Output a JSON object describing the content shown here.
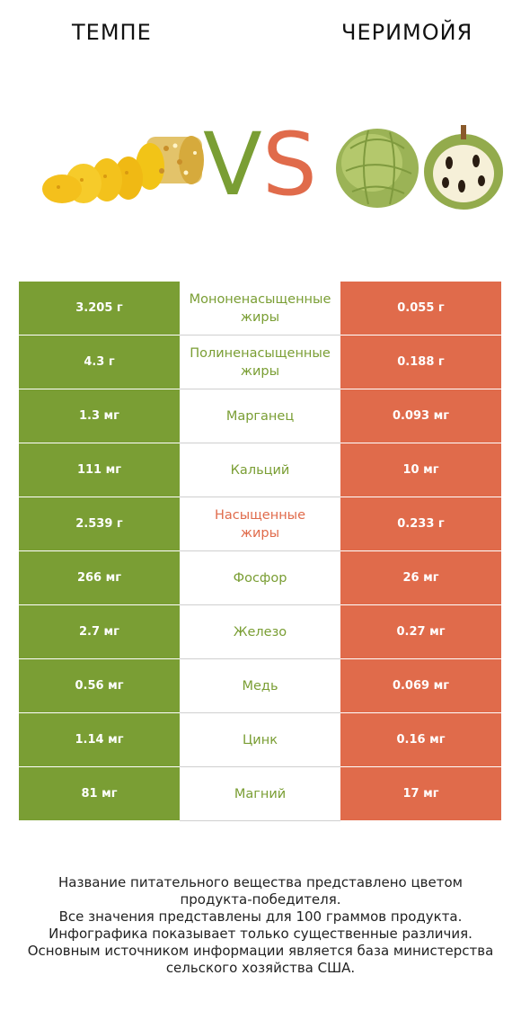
{
  "header": {
    "left_title": "ТЕМПЕ",
    "right_title": "ЧЕРИМОЙЯ",
    "vs_v": "V",
    "vs_s": "S"
  },
  "colors": {
    "left_winner": "#7a9e34",
    "right_winner": "#e06b4b"
  },
  "chart_data": {
    "type": "table",
    "series": [
      {
        "name": "ТЕМПЕ",
        "color": "#7a9e34"
      },
      {
        "name": "ЧЕРИМОЙЯ",
        "color": "#e06b4b"
      }
    ],
    "rows": [
      {
        "nutrient": "Мононенасыщенные жиры",
        "left": "3.205 г",
        "right": "0.055 г",
        "winner": "left"
      },
      {
        "nutrient": "Полиненасыщенные жиры",
        "left": "4.3 г",
        "right": "0.188 г",
        "winner": "left"
      },
      {
        "nutrient": "Марганец",
        "left": "1.3 мг",
        "right": "0.093 мг",
        "winner": "left"
      },
      {
        "nutrient": "Кальций",
        "left": "111 мг",
        "right": "10 мг",
        "winner": "left"
      },
      {
        "nutrient": "Насыщенные жиры",
        "left": "2.539 г",
        "right": "0.233 г",
        "winner": "right"
      },
      {
        "nutrient": "Фосфор",
        "left": "266 мг",
        "right": "26 мг",
        "winner": "left"
      },
      {
        "nutrient": "Железо",
        "left": "2.7 мг",
        "right": "0.27 мг",
        "winner": "left"
      },
      {
        "nutrient": "Медь",
        "left": "0.56 мг",
        "right": "0.069 мг",
        "winner": "left"
      },
      {
        "nutrient": "Цинк",
        "left": "1.14 мг",
        "right": "0.16 мг",
        "winner": "left"
      },
      {
        "nutrient": "Магний",
        "left": "81 мг",
        "right": "17 мг",
        "winner": "left"
      }
    ]
  },
  "footer": {
    "lines": [
      "Название питательного вещества представлено цветом",
      "продукта-победителя.",
      "Все значения представлены для 100 граммов продукта.",
      "Инфографика показывает только существенные различия.",
      "Основным источником информации является база министерства",
      "сельского хозяйства США."
    ]
  }
}
